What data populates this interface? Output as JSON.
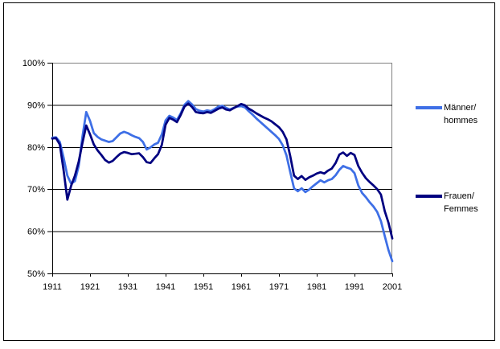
{
  "chart_data": {
    "type": "line",
    "title": "",
    "xlabel": "",
    "ylabel": "",
    "grid": true,
    "legend_position": "right",
    "x_range": [
      1911,
      2001
    ],
    "y_range": [
      50,
      100
    ],
    "y_ticks": [
      50,
      60,
      70,
      80,
      90,
      100
    ],
    "y_tick_labels": [
      "50%",
      "60%",
      "70%",
      "80%",
      "90%",
      "100%"
    ],
    "x_ticks": [
      1911,
      1921,
      1931,
      1941,
      1951,
      1961,
      1971,
      1981,
      1991,
      2001
    ],
    "x_tick_labels": [
      "1911",
      "1921",
      "1931",
      "1941",
      "1951",
      "1961",
      "1971",
      "1981",
      "1991",
      "2001"
    ],
    "years": [
      1911,
      1912,
      1913,
      1914,
      1915,
      1916,
      1917,
      1918,
      1919,
      1920,
      1921,
      1922,
      1923,
      1924,
      1925,
      1926,
      1927,
      1928,
      1929,
      1930,
      1931,
      1932,
      1933,
      1934,
      1935,
      1936,
      1937,
      1938,
      1939,
      1940,
      1941,
      1942,
      1943,
      1944,
      1945,
      1946,
      1947,
      1948,
      1949,
      1950,
      1951,
      1952,
      1953,
      1954,
      1955,
      1956,
      1957,
      1958,
      1959,
      1960,
      1961,
      1962,
      1963,
      1964,
      1965,
      1966,
      1967,
      1968,
      1969,
      1970,
      1971,
      1972,
      1973,
      1974,
      1975,
      1976,
      1977,
      1978,
      1979,
      1980,
      1981,
      1982,
      1983,
      1984,
      1985,
      1986,
      1987,
      1988,
      1989,
      1990,
      1991,
      1992,
      1993,
      1994,
      1995,
      1996,
      1997,
      1998,
      1999,
      2000,
      2001
    ],
    "series": [
      {
        "name": "Männer/hommes",
        "label_line1": "Männer/",
        "label_line2": "hommes",
        "color": "#3E6FE6",
        "values": [
          82.2,
          82.3,
          81.2,
          77.5,
          73.2,
          71.3,
          71.9,
          75.5,
          82.5,
          88.3,
          86.2,
          83.3,
          82.4,
          81.8,
          81.5,
          81.2,
          81.4,
          82.3,
          83.2,
          83.6,
          83.3,
          82.8,
          82.4,
          82.1,
          81.2,
          79.4,
          79.9,
          80.6,
          81.0,
          83.0,
          86.3,
          87.4,
          87.0,
          86.4,
          88.0,
          90.0,
          90.9,
          90.1,
          89.0,
          88.6,
          88.4,
          88.7,
          88.5,
          89.0,
          89.6,
          89.8,
          89.3,
          88.9,
          89.3,
          89.6,
          89.7,
          89.4,
          88.5,
          87.7,
          86.8,
          86.0,
          85.2,
          84.4,
          83.6,
          82.8,
          81.9,
          80.4,
          78.0,
          74.0,
          70.2,
          69.5,
          70.2,
          69.3,
          69.9,
          70.7,
          71.4,
          72.1,
          71.6,
          72.1,
          72.4,
          73.3,
          74.6,
          75.5,
          75.1,
          74.8,
          73.8,
          70.9,
          69.1,
          68.1,
          66.9,
          65.9,
          64.6,
          62.4,
          58.9,
          55.5,
          52.9
        ]
      },
      {
        "name": "Frauen/Femmes",
        "label_line1": "Frauen/",
        "label_line2": "Femmes",
        "color": "#000080",
        "values": [
          82.0,
          82.1,
          80.6,
          74.5,
          67.5,
          70.8,
          73.2,
          76.5,
          81.0,
          85.1,
          83.0,
          80.6,
          79.2,
          78.1,
          76.9,
          76.3,
          76.7,
          77.6,
          78.4,
          78.8,
          78.6,
          78.3,
          78.4,
          78.5,
          77.6,
          76.4,
          76.2,
          77.3,
          78.3,
          80.5,
          85.3,
          86.9,
          86.5,
          85.9,
          87.6,
          89.6,
          90.3,
          89.5,
          88.3,
          88.1,
          88.0,
          88.3,
          88.1,
          88.6,
          89.1,
          89.4,
          88.9,
          88.7,
          89.2,
          89.7,
          90.2,
          89.9,
          89.1,
          88.6,
          88.0,
          87.5,
          87.0,
          86.6,
          86.1,
          85.4,
          84.7,
          83.6,
          81.8,
          77.8,
          73.2,
          72.4,
          73.1,
          72.2,
          72.8,
          73.2,
          73.7,
          74.0,
          73.7,
          74.4,
          74.9,
          76.2,
          78.2,
          78.7,
          77.9,
          78.6,
          78.1,
          75.5,
          73.9,
          72.6,
          71.7,
          70.9,
          70.0,
          68.7,
          64.8,
          62.0,
          58.3
        ]
      }
    ],
    "colors": {
      "gridline": "#000000",
      "plot_border": "#808080",
      "axis": "#000000",
      "background": "#ffffff"
    }
  }
}
